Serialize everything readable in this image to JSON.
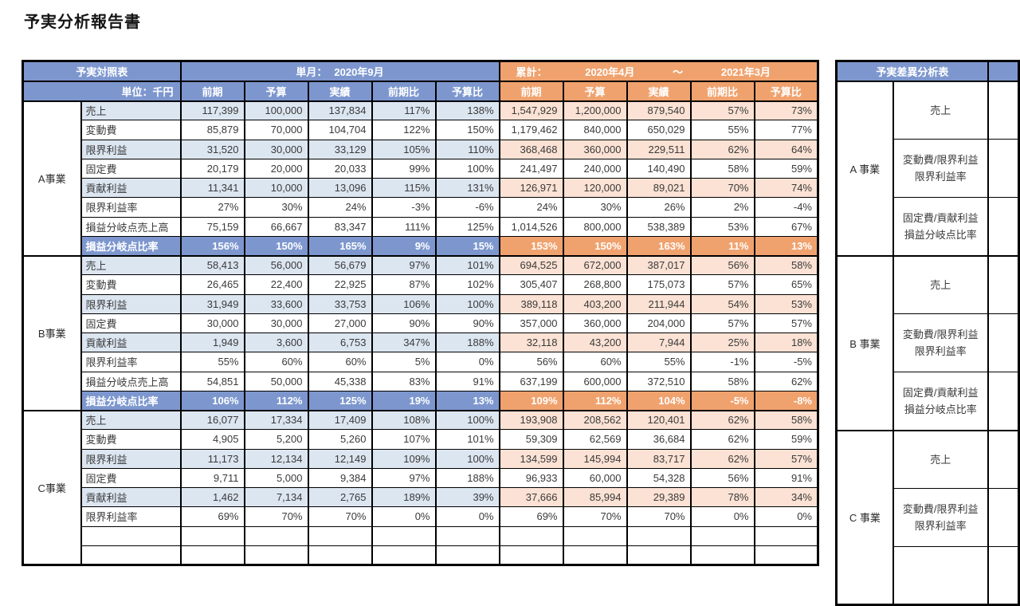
{
  "title": "予実分析報告書",
  "colors": {
    "header-blue": "#7D97CE",
    "header-orange": "#F0A26E",
    "light-blue": "#DCE6F1",
    "light-orange": "#FBE2D4",
    "border": "#000000",
    "text": "#3A3A3A"
  },
  "left_table": {
    "corner_title": "予実対照表",
    "unit_label": "単位：千円",
    "monthly_header": {
      "label": "単月：",
      "period": "2020年9月"
    },
    "cumulative_header": {
      "label": "累計：",
      "from": "2020年4月",
      "tilde": "～",
      "to": "2021年3月"
    },
    "sub_columns": [
      "前期",
      "予算",
      "実績",
      "前期比",
      "予算比"
    ],
    "groups": [
      {
        "name": "A事業",
        "rows": [
          {
            "label": "売上",
            "style": "light",
            "monthly": [
              "117,399",
              "100,000",
              "137,834",
              "117%",
              "138%"
            ],
            "cumulative": [
              "1,547,929",
              "1,200,000",
              "879,540",
              "57%",
              "73%"
            ]
          },
          {
            "label": "変動費",
            "style": "plain",
            "monthly": [
              "85,879",
              "70,000",
              "104,704",
              "122%",
              "150%"
            ],
            "cumulative": [
              "1,179,462",
              "840,000",
              "650,029",
              "55%",
              "77%"
            ]
          },
          {
            "label": "限界利益",
            "style": "light",
            "monthly": [
              "31,520",
              "30,000",
              "33,129",
              "105%",
              "110%"
            ],
            "cumulative": [
              "368,468",
              "360,000",
              "229,511",
              "62%",
              "64%"
            ]
          },
          {
            "label": "固定費",
            "style": "plain",
            "monthly": [
              "20,179",
              "20,000",
              "20,033",
              "99%",
              "100%"
            ],
            "cumulative": [
              "241,497",
              "240,000",
              "140,490",
              "58%",
              "59%"
            ]
          },
          {
            "label": "貢献利益",
            "style": "light",
            "monthly": [
              "11,341",
              "10,000",
              "13,096",
              "115%",
              "131%"
            ],
            "cumulative": [
              "126,971",
              "120,000",
              "89,021",
              "70%",
              "74%"
            ]
          },
          {
            "label": "限界利益率",
            "style": "plain",
            "monthly": [
              "27%",
              "30%",
              "24%",
              "-3%",
              "-6%"
            ],
            "cumulative": [
              "24%",
              "30%",
              "26%",
              "2%",
              "-4%"
            ]
          },
          {
            "label": "損益分岐点売上高",
            "style": "plain",
            "monthly": [
              "75,159",
              "66,667",
              "83,347",
              "111%",
              "125%"
            ],
            "cumulative": [
              "1,014,526",
              "800,000",
              "538,389",
              "53%",
              "67%"
            ]
          },
          {
            "label": "損益分岐点比率",
            "style": "accent",
            "monthly": [
              "156%",
              "150%",
              "165%",
              "9%",
              "15%"
            ],
            "cumulative": [
              "153%",
              "150%",
              "163%",
              "11%",
              "13%"
            ]
          }
        ]
      },
      {
        "name": "B事業",
        "rows": [
          {
            "label": "売上",
            "style": "light",
            "monthly": [
              "58,413",
              "56,000",
              "56,679",
              "97%",
              "101%"
            ],
            "cumulative": [
              "694,525",
              "672,000",
              "387,017",
              "56%",
              "58%"
            ]
          },
          {
            "label": "変動費",
            "style": "plain",
            "monthly": [
              "26,465",
              "22,400",
              "22,925",
              "87%",
              "102%"
            ],
            "cumulative": [
              "305,407",
              "268,800",
              "175,073",
              "57%",
              "65%"
            ]
          },
          {
            "label": "限界利益",
            "style": "light",
            "monthly": [
              "31,949",
              "33,600",
              "33,753",
              "106%",
              "100%"
            ],
            "cumulative": [
              "389,118",
              "403,200",
              "211,944",
              "54%",
              "53%"
            ]
          },
          {
            "label": "固定費",
            "style": "plain",
            "monthly": [
              "30,000",
              "30,000",
              "27,000",
              "90%",
              "90%"
            ],
            "cumulative": [
              "357,000",
              "360,000",
              "204,000",
              "57%",
              "57%"
            ]
          },
          {
            "label": "貢献利益",
            "style": "light",
            "monthly": [
              "1,949",
              "3,600",
              "6,753",
              "347%",
              "188%"
            ],
            "cumulative": [
              "32,118",
              "43,200",
              "7,944",
              "25%",
              "18%"
            ]
          },
          {
            "label": "限界利益率",
            "style": "plain",
            "monthly": [
              "55%",
              "60%",
              "60%",
              "5%",
              "0%"
            ],
            "cumulative": [
              "56%",
              "60%",
              "55%",
              "-1%",
              "-5%"
            ]
          },
          {
            "label": "損益分岐点売上高",
            "style": "plain",
            "monthly": [
              "54,851",
              "50,000",
              "45,338",
              "83%",
              "91%"
            ],
            "cumulative": [
              "637,199",
              "600,000",
              "372,510",
              "58%",
              "62%"
            ]
          },
          {
            "label": "損益分岐点比率",
            "style": "accent",
            "monthly": [
              "106%",
              "112%",
              "125%",
              "19%",
              "13%"
            ],
            "cumulative": [
              "109%",
              "112%",
              "104%",
              "-5%",
              "-8%"
            ]
          }
        ]
      },
      {
        "name": "C事業",
        "rows": [
          {
            "label": "売上",
            "style": "light",
            "monthly": [
              "16,077",
              "17,334",
              "17,409",
              "108%",
              "100%"
            ],
            "cumulative": [
              "193,908",
              "208,562",
              "120,401",
              "62%",
              "58%"
            ]
          },
          {
            "label": "変動費",
            "style": "plain",
            "monthly": [
              "4,905",
              "5,200",
              "5,260",
              "107%",
              "101%"
            ],
            "cumulative": [
              "59,309",
              "62,569",
              "36,684",
              "62%",
              "59%"
            ]
          },
          {
            "label": "限界利益",
            "style": "light",
            "monthly": [
              "11,173",
              "12,134",
              "12,149",
              "109%",
              "100%"
            ],
            "cumulative": [
              "134,599",
              "145,994",
              "83,717",
              "62%",
              "57%"
            ]
          },
          {
            "label": "固定費",
            "style": "plain",
            "monthly": [
              "9,711",
              "5,000",
              "9,384",
              "97%",
              "188%"
            ],
            "cumulative": [
              "96,933",
              "60,000",
              "54,328",
              "56%",
              "91%"
            ]
          },
          {
            "label": "貢献利益",
            "style": "light",
            "monthly": [
              "1,462",
              "7,134",
              "2,765",
              "189%",
              "39%"
            ],
            "cumulative": [
              "37,666",
              "85,994",
              "29,389",
              "78%",
              "34%"
            ]
          },
          {
            "label": "限界利益率",
            "style": "plain",
            "monthly": [
              "69%",
              "70%",
              "70%",
              "0%",
              "0%"
            ],
            "cumulative": [
              "69%",
              "70%",
              "70%",
              "0%",
              "0%"
            ]
          },
          {
            "label": "",
            "style": "plain",
            "monthly": [
              "",
              "",
              "",
              "",
              ""
            ],
            "cumulative": [
              "",
              "",
              "",
              "",
              ""
            ]
          },
          {
            "label": "",
            "style": "plain",
            "monthly": [
              "",
              "",
              "",
              "",
              ""
            ],
            "cumulative": [
              "",
              "",
              "",
              "",
              ""
            ]
          }
        ]
      }
    ]
  },
  "analysis_table": {
    "title": "予実差異分析表",
    "groups": [
      {
        "name": "A 事業",
        "items": [
          [
            "売上"
          ],
          [
            "変動費/限界利益",
            "限界利益率"
          ],
          [
            "固定費/貢献利益",
            "損益分岐点比率"
          ]
        ]
      },
      {
        "name": "B 事業",
        "items": [
          [
            "売上"
          ],
          [
            "変動費/限界利益",
            "限界利益率"
          ],
          [
            "固定費/貢献利益",
            "損益分岐点比率"
          ]
        ]
      },
      {
        "name": "C 事業",
        "items": [
          [
            "売上"
          ],
          [
            "変動費/限界利益",
            "限界利益率"
          ],
          [
            "",
            ""
          ]
        ]
      }
    ]
  }
}
